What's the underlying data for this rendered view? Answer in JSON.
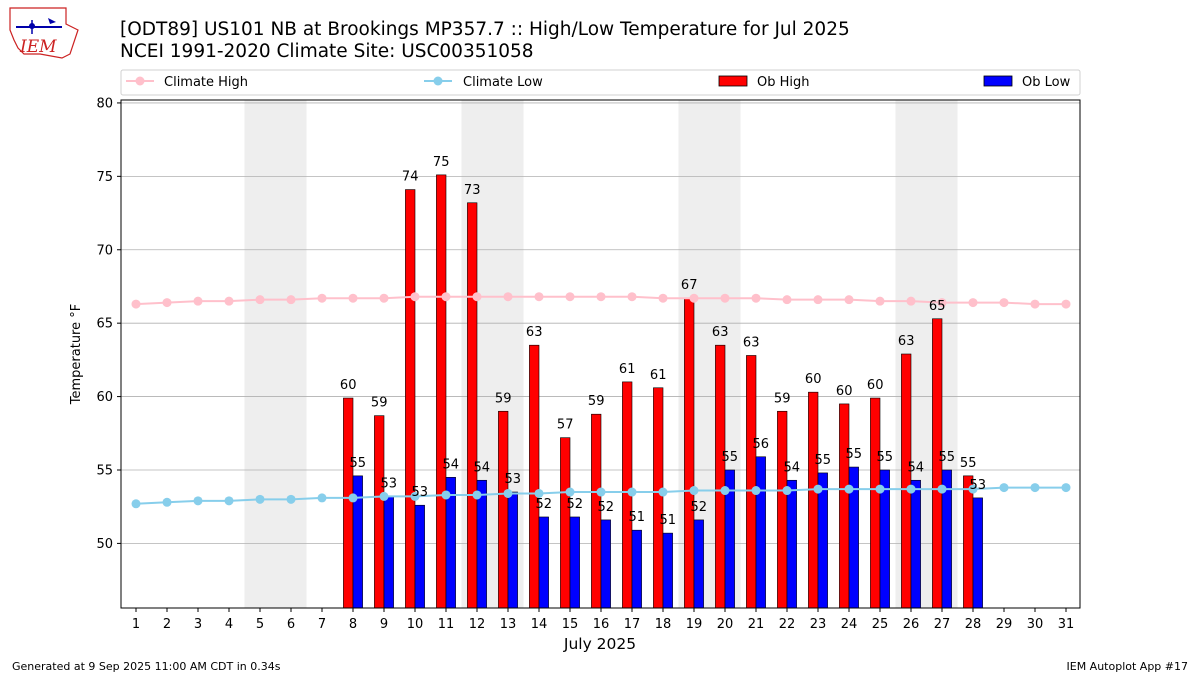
{
  "header": {
    "logo_text": "IEM",
    "title_line1": "[ODT89] US101 NB at Brookings MP357.7  :: High/Low Temperature for Jul 2025",
    "title_line2": "NCEI 1991-2020 Climate Site: USC00351058"
  },
  "footer": {
    "left": "Generated at 9 Sep 2025 11:00 AM CDT in 0.34s",
    "right": "IEM Autoplot App #17"
  },
  "colors": {
    "ob_high": "#ff0000",
    "ob_low": "#0000ff",
    "climate_high": "#ffc0cb",
    "climate_low": "#87ceeb",
    "weekend_shade": "#eeeeee",
    "grid": "#b0b0b0"
  },
  "chart_data": {
    "type": "bar",
    "xlabel": "July 2025",
    "ylabel": "Temperature °F",
    "ylim": [
      45.6,
      80.2
    ],
    "yticks": [
      50,
      55,
      60,
      65,
      70,
      75,
      80
    ],
    "grid": "horizontal",
    "legend_position": "top",
    "days": [
      1,
      2,
      3,
      4,
      5,
      6,
      7,
      8,
      9,
      10,
      11,
      12,
      13,
      14,
      15,
      16,
      17,
      18,
      19,
      20,
      21,
      22,
      23,
      24,
      25,
      26,
      27,
      28,
      29,
      30,
      31
    ],
    "shaded_days": [
      [
        5,
        6
      ],
      [
        12,
        13
      ],
      [
        19,
        20
      ],
      [
        26,
        27
      ]
    ],
    "series": [
      {
        "name": "Climate High",
        "kind": "line",
        "values": [
          66.3,
          66.4,
          66.5,
          66.5,
          66.6,
          66.6,
          66.7,
          66.7,
          66.7,
          66.8,
          66.8,
          66.8,
          66.8,
          66.8,
          66.8,
          66.8,
          66.8,
          66.7,
          66.7,
          66.7,
          66.7,
          66.6,
          66.6,
          66.6,
          66.5,
          66.5,
          66.4,
          66.4,
          66.4,
          66.3,
          66.3
        ]
      },
      {
        "name": "Climate Low",
        "kind": "line",
        "values": [
          52.7,
          52.8,
          52.9,
          52.9,
          53.0,
          53.0,
          53.1,
          53.1,
          53.2,
          53.2,
          53.3,
          53.3,
          53.4,
          53.4,
          53.5,
          53.5,
          53.5,
          53.5,
          53.6,
          53.6,
          53.6,
          53.6,
          53.7,
          53.7,
          53.7,
          53.7,
          53.7,
          53.7,
          53.8,
          53.8,
          53.8
        ]
      },
      {
        "name": "Ob High",
        "kind": "bar",
        "values": [
          null,
          null,
          null,
          null,
          null,
          null,
          null,
          59.9,
          58.7,
          74.1,
          75.1,
          73.2,
          59.0,
          63.5,
          57.2,
          58.8,
          61.0,
          60.6,
          66.7,
          63.5,
          62.8,
          59.0,
          60.3,
          59.5,
          59.9,
          62.9,
          65.3,
          54.6,
          null,
          null,
          null
        ],
        "labels": [
          null,
          null,
          null,
          null,
          null,
          null,
          null,
          "60",
          "59",
          "74",
          "75",
          "73",
          "59",
          "63",
          "57",
          "59",
          "61",
          "61",
          "67",
          "63",
          "63",
          "59",
          "60",
          "60",
          "60",
          "63",
          "65",
          "55",
          null,
          null,
          null
        ]
      },
      {
        "name": "Ob Low",
        "kind": "bar",
        "values": [
          null,
          null,
          null,
          null,
          null,
          null,
          null,
          54.6,
          53.2,
          52.6,
          54.5,
          54.3,
          53.5,
          51.8,
          51.8,
          51.6,
          50.9,
          50.7,
          51.6,
          55.0,
          55.9,
          54.3,
          54.8,
          55.2,
          55.0,
          54.3,
          55.0,
          53.1,
          null,
          null,
          null
        ],
        "labels": [
          null,
          null,
          null,
          null,
          null,
          null,
          null,
          "55",
          "53",
          "53",
          "54",
          "54",
          "53",
          "52",
          "52",
          "52",
          "51",
          "51",
          "52",
          "55",
          "56",
          "54",
          "55",
          "55",
          "55",
          "54",
          "55",
          "53",
          null,
          null,
          null
        ]
      }
    ]
  }
}
